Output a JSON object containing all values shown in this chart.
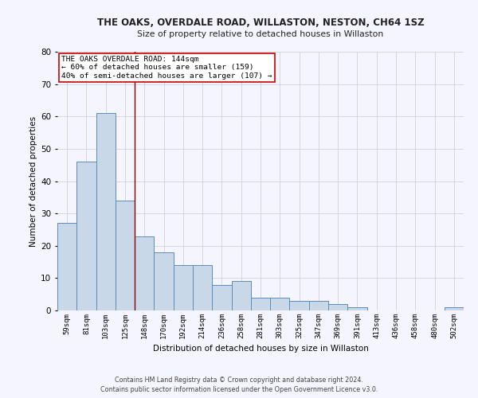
{
  "title": "THE OAKS, OVERDALE ROAD, WILLASTON, NESTON, CH64 1SZ",
  "subtitle": "Size of property relative to detached houses in Willaston",
  "xlabel": "Distribution of detached houses by size in Willaston",
  "ylabel": "Number of detached properties",
  "categories": [
    "59sqm",
    "81sqm",
    "103sqm",
    "125sqm",
    "148sqm",
    "170sqm",
    "192sqm",
    "214sqm",
    "236sqm",
    "258sqm",
    "281sqm",
    "303sqm",
    "325sqm",
    "347sqm",
    "369sqm",
    "391sqm",
    "413sqm",
    "436sqm",
    "458sqm",
    "480sqm",
    "502sqm"
  ],
  "values": [
    27,
    46,
    61,
    34,
    23,
    18,
    14,
    14,
    8,
    9,
    4,
    4,
    3,
    3,
    2,
    1,
    0,
    0,
    0,
    0,
    1
  ],
  "bar_color": "#c8d8e8",
  "bar_edge_color": "#5b8db8",
  "annotation_title": "THE OAKS OVERDALE ROAD: 144sqm",
  "annotation_line1": "← 60% of detached houses are smaller (159)",
  "annotation_line2": "40% of semi-detached houses are larger (107) →",
  "ylim": [
    0,
    80
  ],
  "yticks": [
    0,
    10,
    20,
    30,
    40,
    50,
    60,
    70,
    80
  ],
  "grid_color": "#cccccc",
  "background_color": "#f5f5ff",
  "footer_line1": "Contains HM Land Registry data © Crown copyright and database right 2024.",
  "footer_line2": "Contains public sector information licensed under the Open Government Licence v3.0."
}
